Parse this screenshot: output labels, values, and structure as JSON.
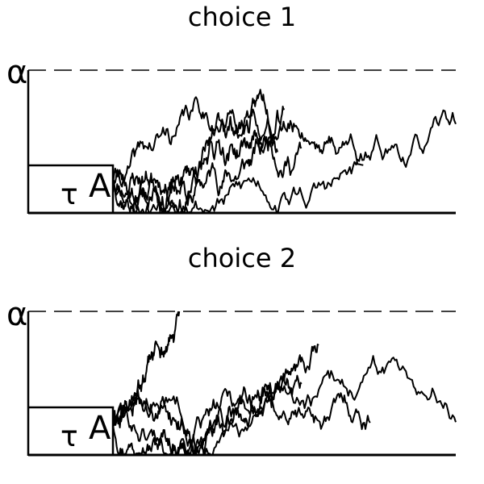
{
  "panels": [
    {
      "title": "choice 1",
      "threshold_label": "α",
      "tau_label": "τ",
      "start_label": "A",
      "paths": [
        {
          "seed": 11,
          "drift": 0.95,
          "end_t": 0.55
        },
        {
          "seed": 23,
          "drift": 0.8,
          "end_t": 0.48
        },
        {
          "seed": 37,
          "drift": 0.65,
          "end_t": 0.5
        },
        {
          "seed": 41,
          "drift": 0.4,
          "end_t": 0.73
        },
        {
          "seed": 53,
          "drift": 0.3,
          "end_t": 1.0
        }
      ]
    },
    {
      "title": "choice 2",
      "threshold_label": "α",
      "tau_label": "τ",
      "start_label": "A",
      "paths": [
        {
          "seed": 61,
          "drift": 0.55,
          "end_t": 0.37
        },
        {
          "seed": 71,
          "drift": 0.2,
          "end_t": 0.55
        },
        {
          "seed": 83,
          "drift": -0.05,
          "end_t": 1.0
        },
        {
          "seed": 97,
          "drift": 0.05,
          "end_t": 0.6
        },
        {
          "seed": 101,
          "drift": -0.1,
          "end_t": 0.75
        }
      ]
    }
  ]
}
